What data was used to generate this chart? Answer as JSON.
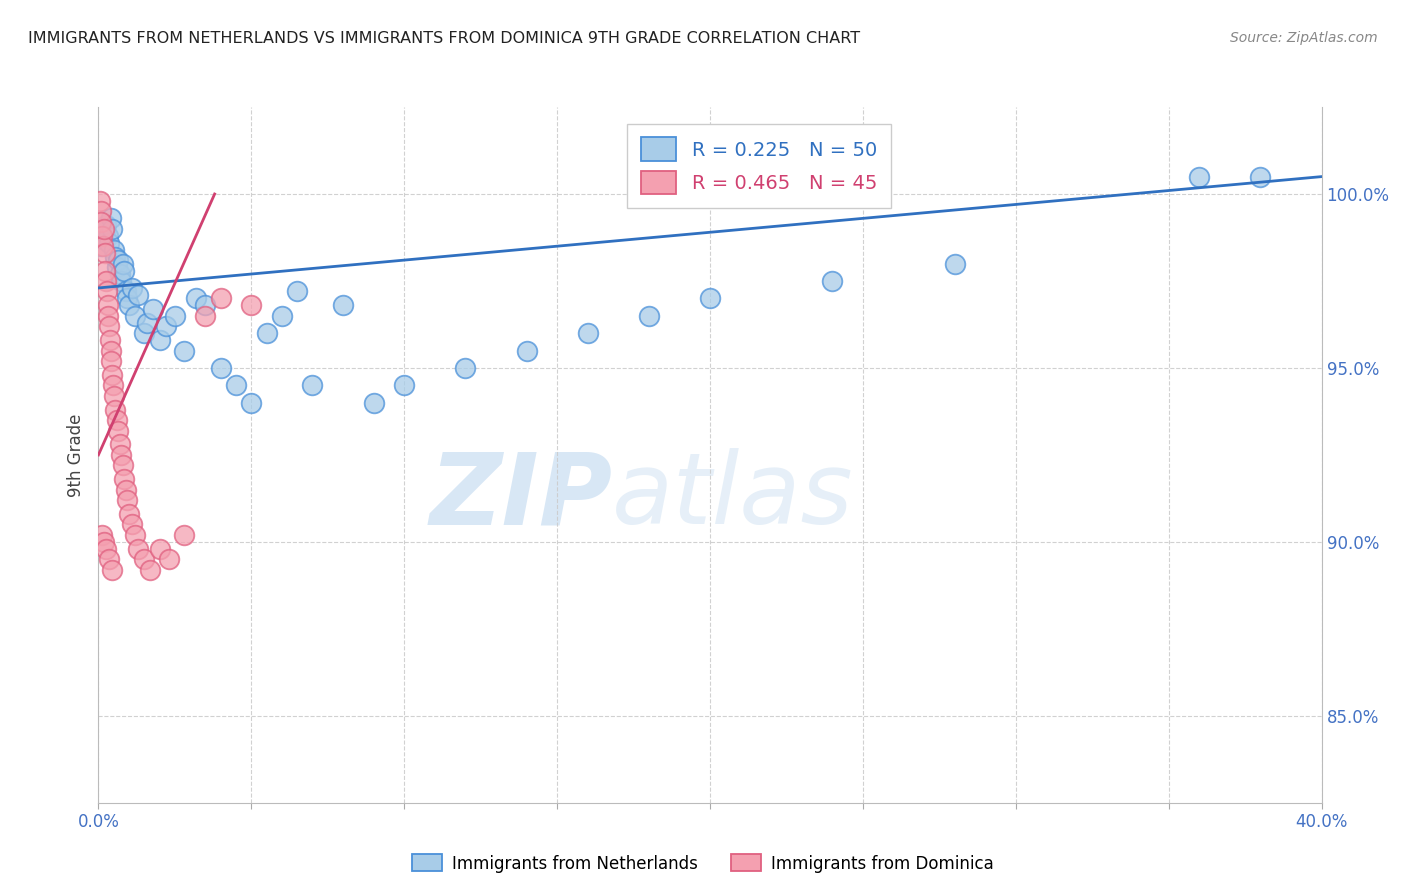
{
  "title": "IMMIGRANTS FROM NETHERLANDS VS IMMIGRANTS FROM DOMINICA 9TH GRADE CORRELATION CHART",
  "source": "Source: ZipAtlas.com",
  "ylabel": "9th Grade",
  "xlim": [
    0.0,
    40.0
  ],
  "ylim": [
    82.5,
    102.5
  ],
  "yticks": [
    85.0,
    90.0,
    95.0,
    100.0
  ],
  "ytick_labels": [
    "85.0%",
    "90.0%",
    "95.0%",
    "100.0%"
  ],
  "xtick_left_label": "0.0%",
  "xtick_right_label": "40.0%",
  "legend_R1": "R = 0.225",
  "legend_N1": "N = 50",
  "legend_R2": "R = 0.465",
  "legend_N2": "N = 45",
  "label1": "Immigrants from Netherlands",
  "label2": "Immigrants from Dominica",
  "color1": "#a8cce8",
  "color2": "#f4a0b0",
  "edge1": "#4a90d9",
  "edge2": "#e06080",
  "trendline1_color": "#3070c0",
  "trendline2_color": "#d04070",
  "background": "#ffffff",
  "watermark_zip": "ZIP",
  "watermark_atlas": "atlas",
  "nl_x": [
    0.1,
    0.15,
    0.2,
    0.25,
    0.3,
    0.35,
    0.4,
    0.45,
    0.5,
    0.55,
    0.6,
    0.65,
    0.7,
    0.75,
    0.8,
    0.85,
    0.9,
    0.95,
    1.0,
    1.1,
    1.2,
    1.3,
    1.5,
    1.6,
    1.8,
    2.0,
    2.2,
    2.5,
    2.8,
    3.2,
    3.5,
    4.0,
    4.5,
    5.0,
    5.5,
    6.0,
    6.5,
    7.0,
    8.0,
    9.0,
    10.0,
    12.0,
    14.0,
    16.0,
    18.0,
    20.0,
    24.0,
    28.0,
    36.0,
    38.0
  ],
  "nl_y": [
    98.5,
    98.7,
    98.9,
    99.1,
    98.8,
    98.6,
    99.3,
    99.0,
    98.4,
    98.2,
    97.9,
    98.1,
    97.7,
    97.5,
    98.0,
    97.8,
    97.2,
    97.0,
    96.8,
    97.3,
    96.5,
    97.1,
    96.0,
    96.3,
    96.7,
    95.8,
    96.2,
    96.5,
    95.5,
    97.0,
    96.8,
    95.0,
    94.5,
    94.0,
    96.0,
    96.5,
    97.2,
    94.5,
    96.8,
    94.0,
    94.5,
    95.0,
    95.5,
    96.0,
    96.5,
    97.0,
    97.5,
    98.0,
    100.5,
    100.5
  ],
  "dom_x": [
    0.05,
    0.08,
    0.1,
    0.12,
    0.15,
    0.18,
    0.2,
    0.22,
    0.25,
    0.28,
    0.3,
    0.32,
    0.35,
    0.38,
    0.4,
    0.42,
    0.45,
    0.48,
    0.5,
    0.55,
    0.6,
    0.65,
    0.7,
    0.75,
    0.8,
    0.85,
    0.9,
    0.95,
    1.0,
    1.1,
    1.2,
    1.3,
    1.5,
    1.7,
    2.0,
    2.3,
    2.8,
    3.5,
    4.0,
    5.0,
    0.12,
    0.18,
    0.25,
    0.35,
    0.45
  ],
  "dom_y": [
    99.8,
    99.5,
    99.2,
    98.8,
    98.5,
    99.0,
    98.3,
    97.8,
    97.5,
    97.2,
    96.8,
    96.5,
    96.2,
    95.8,
    95.5,
    95.2,
    94.8,
    94.5,
    94.2,
    93.8,
    93.5,
    93.2,
    92.8,
    92.5,
    92.2,
    91.8,
    91.5,
    91.2,
    90.8,
    90.5,
    90.2,
    89.8,
    89.5,
    89.2,
    89.8,
    89.5,
    90.2,
    96.5,
    97.0,
    96.8,
    90.2,
    90.0,
    89.8,
    89.5,
    89.2
  ]
}
